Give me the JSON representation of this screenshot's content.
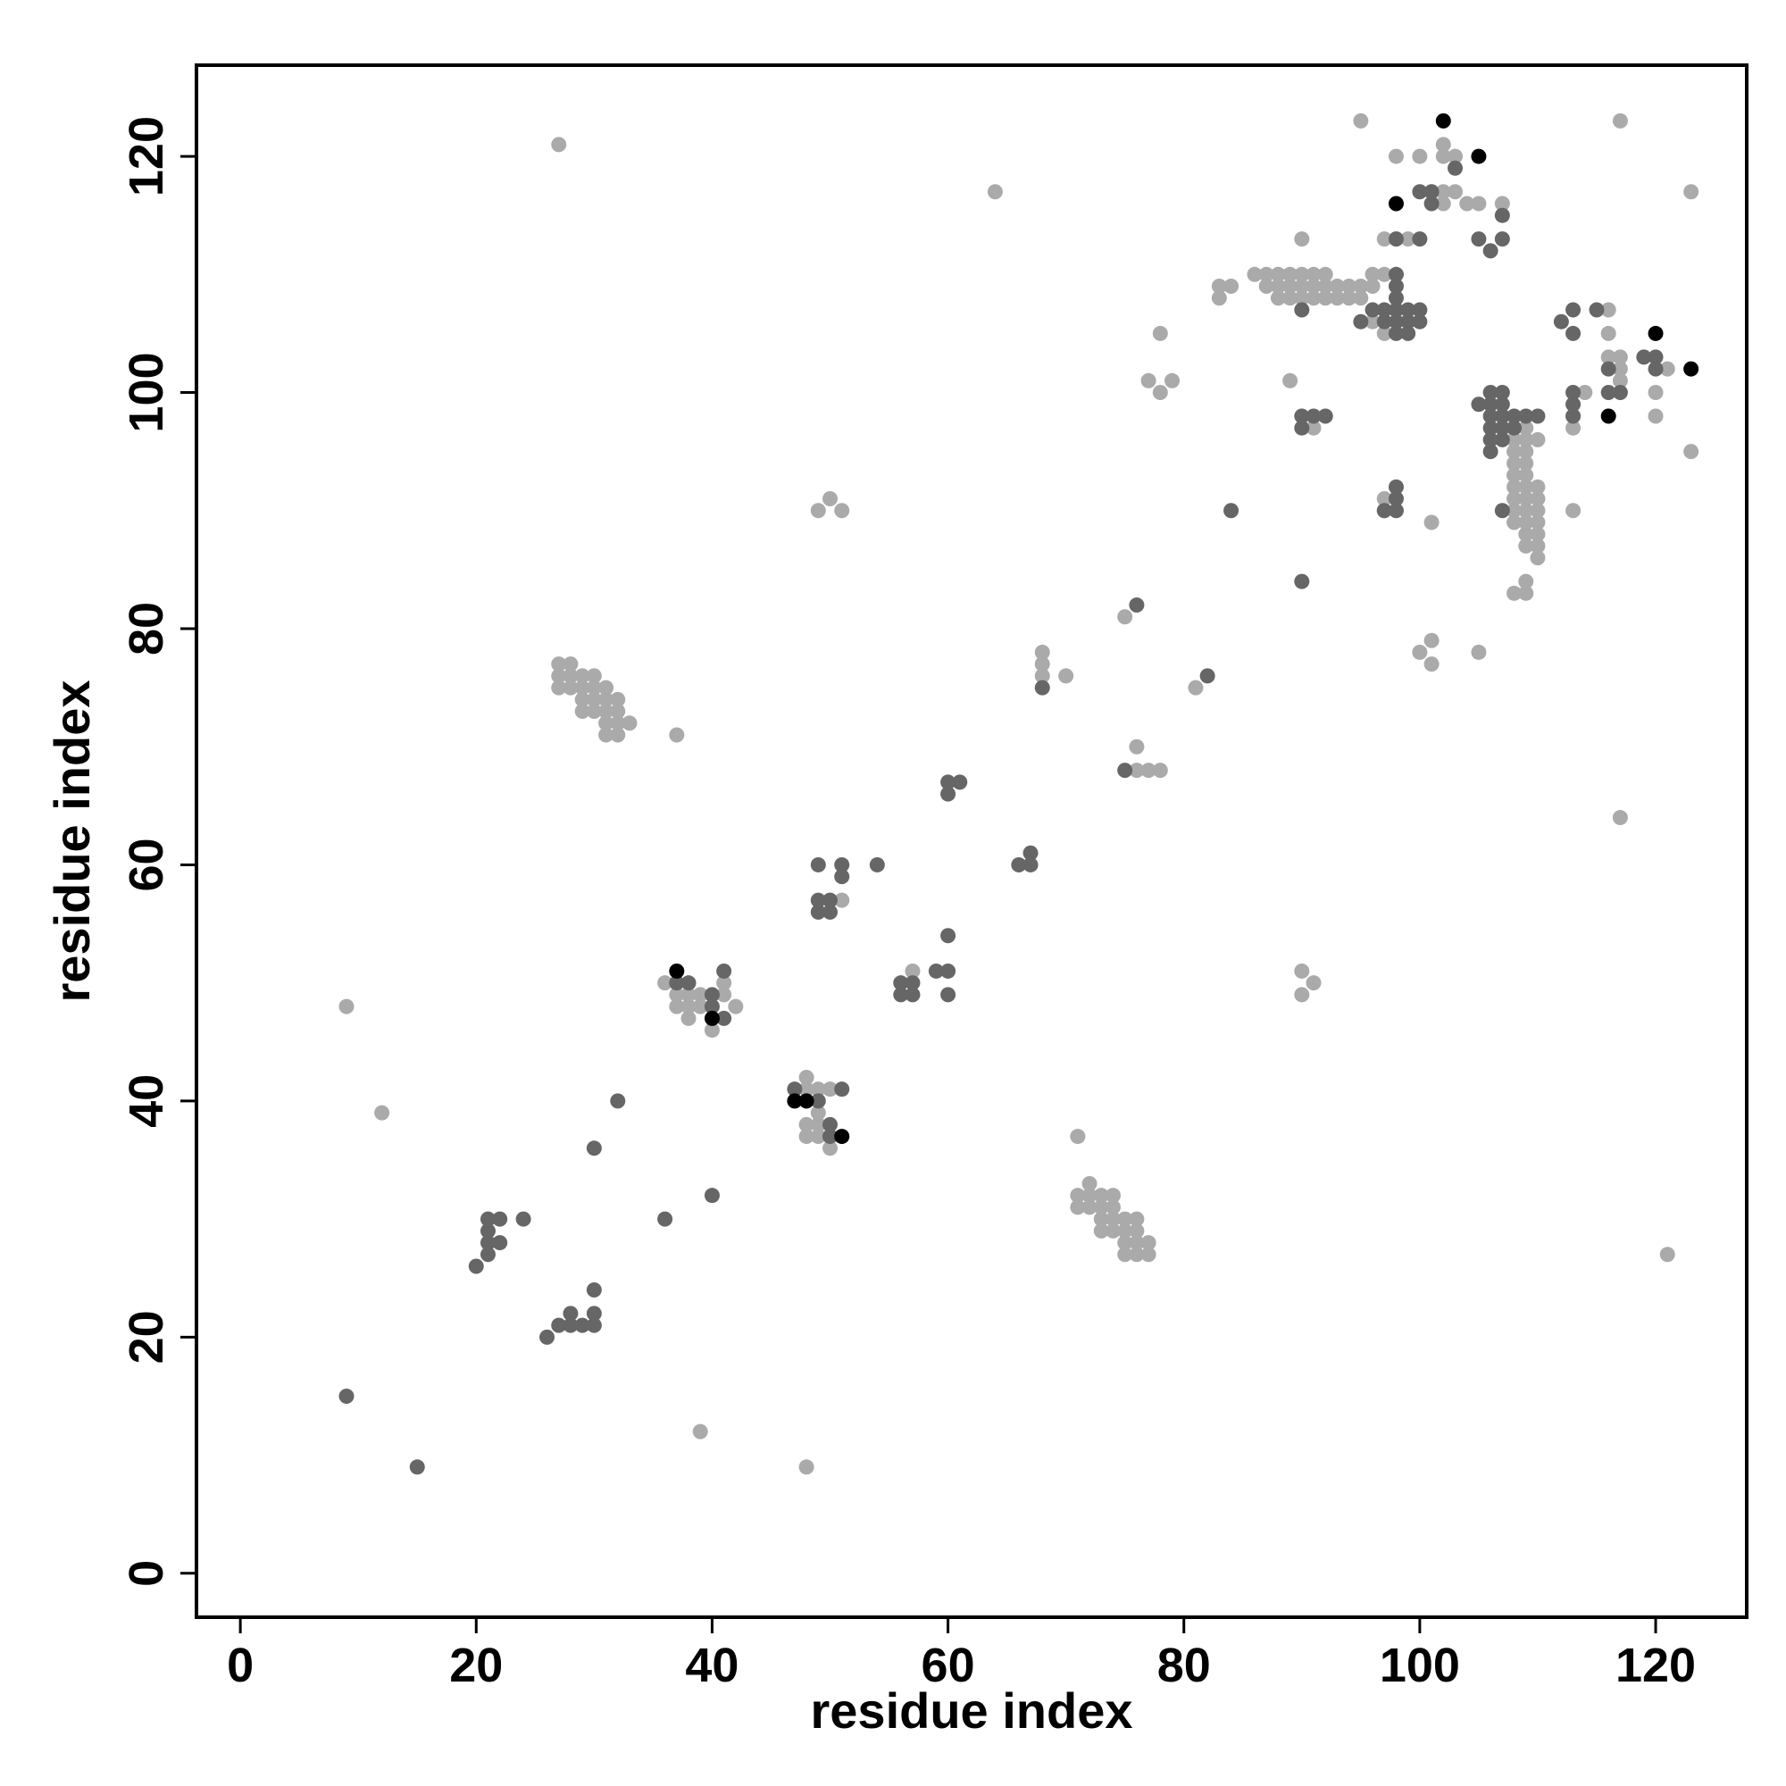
{
  "chart_data": {
    "type": "scatter",
    "x_label": "residue index",
    "y_label": "residue index",
    "xlim": [
      -3.72,
      127.72
    ],
    "ylim": [
      -3.72,
      127.72
    ],
    "xticks": [
      0,
      20,
      40,
      60,
      80,
      100,
      120
    ],
    "yticks": [
      0,
      20,
      40,
      60,
      80,
      100,
      120
    ],
    "series": [
      {
        "color": "#aaaaaa",
        "x": [
          27,
          9,
          12,
          39,
          48,
          64,
          50,
          49,
          51,
          27,
          28,
          27,
          28,
          29,
          30,
          27,
          28,
          29,
          30,
          31,
          29,
          30,
          31,
          32,
          29,
          30,
          31,
          32,
          31,
          32,
          33,
          31,
          32,
          37,
          36,
          37,
          38,
          39,
          37,
          38,
          39,
          38,
          40,
          41,
          41,
          42,
          47,
          48,
          48,
          49,
          50,
          48,
          49,
          48,
          49,
          50,
          49,
          50,
          51,
          57,
          68,
          68,
          68,
          70,
          75,
          76,
          76,
          77,
          78,
          71,
          72,
          71,
          72,
          73,
          74,
          71,
          72,
          73,
          74,
          73,
          74,
          75,
          76,
          73,
          74,
          75,
          76,
          75,
          76,
          77,
          75,
          76,
          77,
          78,
          77,
          78,
          79,
          81,
          83,
          83,
          84,
          86,
          87,
          88,
          89,
          90,
          91,
          92,
          87,
          88,
          89,
          90,
          91,
          92,
          93,
          94,
          95,
          96,
          88,
          89,
          90,
          91,
          92,
          93,
          94,
          95,
          96,
          97,
          90,
          89,
          91,
          90,
          91,
          90,
          95,
          98,
          100,
          102,
          102,
          103,
          97,
          98,
          99,
          101,
          102,
          103,
          102,
          105,
          107,
          104,
          97,
          97,
          101,
          100,
          101,
          101,
          105,
          96,
          97,
          108,
          109,
          108,
          109,
          110,
          108,
          109,
          108,
          109,
          108,
          109,
          108,
          109,
          110,
          108,
          109,
          110,
          108,
          109,
          110,
          108,
          109,
          110,
          109,
          110,
          109,
          110,
          110,
          108,
          109,
          109,
          113,
          113,
          113,
          114,
          116,
          116,
          117,
          117,
          117,
          116,
          121,
          120,
          120,
          117,
          123,
          123,
          117,
          121
        ],
        "y": [
          121,
          48,
          39,
          12,
          9,
          117,
          91,
          90,
          90,
          77,
          77,
          76,
          76,
          76,
          76,
          75,
          75,
          75,
          75,
          75,
          74,
          74,
          74,
          74,
          73,
          73,
          73,
          73,
          72,
          72,
          72,
          71,
          71,
          71,
          50,
          49,
          49,
          49,
          48,
          48,
          48,
          47,
          46,
          49,
          50,
          48,
          40,
          42,
          41,
          41,
          41,
          38,
          39,
          37,
          37,
          36,
          38,
          57,
          57,
          51,
          78,
          77,
          76,
          76,
          81,
          70,
          68,
          68,
          68,
          37,
          33,
          32,
          32,
          32,
          32,
          31,
          31,
          31,
          31,
          30,
          30,
          30,
          30,
          29,
          29,
          29,
          29,
          28,
          28,
          28,
          27,
          27,
          27,
          105,
          101,
          100,
          101,
          75,
          109,
          108,
          109,
          110,
          110,
          110,
          110,
          110,
          110,
          110,
          109,
          109,
          109,
          109,
          109,
          109,
          109,
          109,
          109,
          109,
          108,
          108,
          108,
          108,
          108,
          108,
          108,
          108,
          110,
          110,
          113,
          101,
          97,
          51,
          50,
          49,
          123,
          120,
          120,
          121,
          120,
          120,
          113,
          113,
          113,
          117,
          117,
          117,
          116,
          116,
          116,
          116,
          91,
          90,
          89,
          78,
          79,
          77,
          78,
          106,
          105,
          97,
          97,
          96,
          96,
          96,
          95,
          95,
          94,
          94,
          93,
          93,
          92,
          92,
          92,
          91,
          91,
          91,
          90,
          90,
          90,
          89,
          89,
          89,
          88,
          88,
          87,
          87,
          86,
          83,
          83,
          84,
          90,
          97,
          98,
          100,
          103,
          105,
          103,
          102,
          101,
          107,
          102,
          100,
          98,
          123,
          117,
          95,
          64,
          27
        ]
      },
      {
        "color": "#666666",
        "x": [
          9,
          15,
          20,
          21,
          21,
          21,
          21,
          22,
          22,
          24,
          26,
          27,
          28,
          28,
          29,
          30,
          30,
          30,
          30,
          32,
          36,
          40,
          37,
          38,
          40,
          41,
          40,
          41,
          47,
          48,
          49,
          50,
          51,
          50,
          49,
          49,
          50,
          49,
          50,
          51,
          51,
          54,
          56,
          57,
          56,
          57,
          59,
          60,
          60,
          60,
          60,
          61,
          60,
          66,
          67,
          67,
          68,
          75,
          76,
          82,
          84,
          90,
          90,
          91,
          92,
          90,
          90,
          95,
          96,
          97,
          98,
          99,
          97,
          98,
          99,
          100,
          98,
          99,
          98,
          98,
          98,
          100,
          98,
          98,
          97,
          98,
          98,
          100,
          101,
          100,
          101,
          103,
          105,
          106,
          107,
          107,
          105,
          106,
          107,
          106,
          107,
          106,
          107,
          108,
          106,
          107,
          108,
          106,
          107,
          106,
          109,
          110,
          107,
          112,
          113,
          113,
          115,
          113,
          113,
          113,
          116,
          116,
          117,
          119,
          120,
          120
        ],
        "y": [
          15,
          9,
          26,
          27,
          28,
          29,
          30,
          30,
          28,
          30,
          20,
          21,
          21,
          22,
          21,
          21,
          22,
          24,
          36,
          40,
          30,
          32,
          50,
          50,
          49,
          51,
          48,
          47,
          41,
          40,
          40,
          38,
          41,
          37,
          60,
          57,
          57,
          56,
          56,
          60,
          59,
          60,
          50,
          50,
          49,
          49,
          51,
          51,
          49,
          54,
          67,
          67,
          66,
          60,
          60,
          61,
          75,
          68,
          82,
          76,
          90,
          107,
          98,
          98,
          98,
          97,
          84,
          106,
          107,
          107,
          107,
          107,
          106,
          106,
          106,
          106,
          105,
          105,
          108,
          109,
          110,
          107,
          92,
          91,
          90,
          90,
          113,
          113,
          116,
          117,
          117,
          119,
          113,
          112,
          113,
          115,
          99,
          100,
          100,
          99,
          99,
          98,
          98,
          98,
          97,
          97,
          97,
          96,
          96,
          95,
          98,
          98,
          90,
          106,
          107,
          105,
          107,
          100,
          99,
          98,
          102,
          100,
          100,
          103,
          103,
          102
        ]
      },
      {
        "color": "#000000",
        "x": [
          37,
          40,
          47,
          48,
          51,
          98,
          102,
          105,
          116,
          120,
          123
        ],
        "y": [
          51,
          47,
          40,
          40,
          37,
          116,
          123,
          120,
          98,
          105,
          102
        ]
      }
    ]
  }
}
